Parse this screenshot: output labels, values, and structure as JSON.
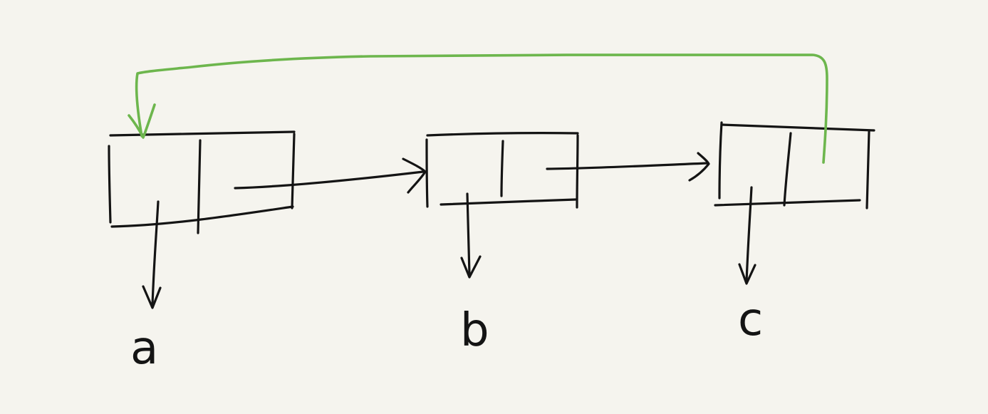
{
  "diagram": {
    "nodes": [
      {
        "id": "node-1",
        "value_label": "a"
      },
      {
        "id": "node-2",
        "value_label": "b"
      },
      {
        "id": "node-3",
        "value_label": "c"
      }
    ],
    "links": [
      {
        "from": "node-1",
        "to": "node-2",
        "kind": "next",
        "color": "#141414"
      },
      {
        "from": "node-2",
        "to": "node-3",
        "kind": "next",
        "color": "#141414"
      },
      {
        "from": "node-3",
        "to": "node-1",
        "kind": "circular-next",
        "color": "#6db64d"
      }
    ],
    "colors": {
      "background": "#f5f4ee",
      "ink": "#141414",
      "back_link": "#6db64d"
    }
  }
}
